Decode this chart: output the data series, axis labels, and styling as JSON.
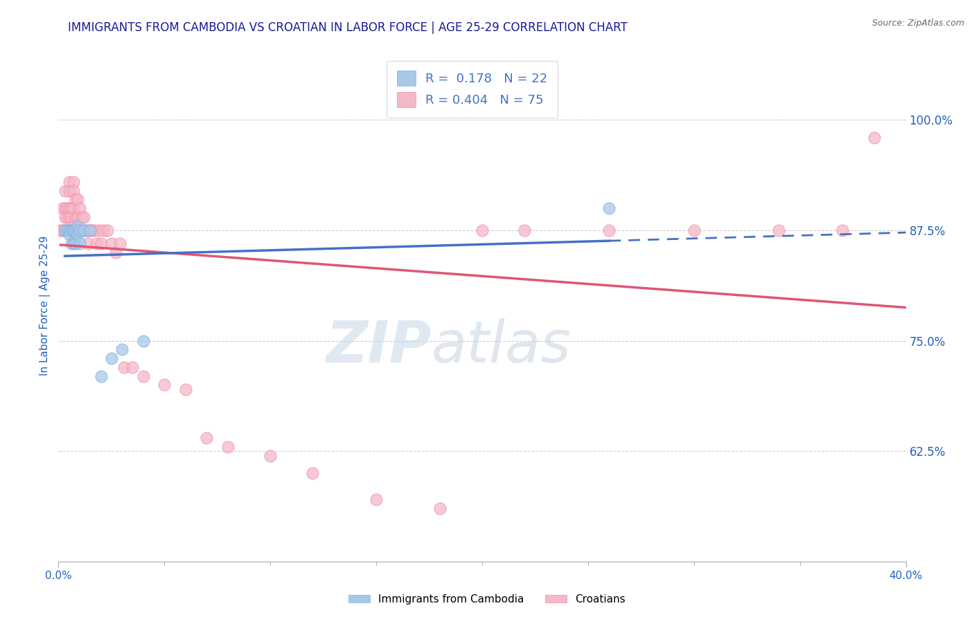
{
  "title": "IMMIGRANTS FROM CAMBODIA VS CROATIAN IN LABOR FORCE | AGE 25-29 CORRELATION CHART",
  "source": "Source: ZipAtlas.com",
  "ylabel": "In Labor Force | Age 25-29",
  "xlim": [
    0.0,
    0.4
  ],
  "ylim": [
    0.5,
    1.08
  ],
  "yticks": [
    0.625,
    0.75,
    0.875,
    1.0
  ],
  "ytick_labels": [
    "62.5%",
    "75.0%",
    "87.5%",
    "100.0%"
  ],
  "xtick_major": [
    0.0,
    0.4
  ],
  "xtick_major_labels": [
    "0.0%",
    "40.0%"
  ],
  "xtick_minor": [
    0.05,
    0.1,
    0.15,
    0.2,
    0.25,
    0.3,
    0.35
  ],
  "cambodia_R": 0.178,
  "cambodia_N": 22,
  "croatian_R": 0.404,
  "croatian_N": 75,
  "cambodia_color": "#a8c8e8",
  "cambodia_edge_color": "#7eb3e0",
  "croatian_color": "#f5b8c8",
  "croatian_edge_color": "#f090a8",
  "cambodia_line_color": "#4472c4",
  "croatian_line_color": "#e05575",
  "title_color": "#1a1a9a",
  "axis_label_color": "#2060c0",
  "tick_label_color": "#2060c0",
  "watermark_zip": "ZIP",
  "watermark_atlas": "atlas",
  "cambodia_x": [
    0.003,
    0.004,
    0.005,
    0.005,
    0.006,
    0.006,
    0.007,
    0.007,
    0.007,
    0.008,
    0.008,
    0.009,
    0.009,
    0.01,
    0.01,
    0.012,
    0.015,
    0.02,
    0.025,
    0.03,
    0.04,
    0.26
  ],
  "cambodia_y": [
    0.875,
    0.875,
    0.875,
    0.87,
    0.875,
    0.86,
    0.875,
    0.86,
    0.875,
    0.875,
    0.86,
    0.88,
    0.87,
    0.875,
    0.86,
    0.875,
    0.875,
    0.71,
    0.73,
    0.74,
    0.75,
    0.9
  ],
  "croatian_x": [
    0.001,
    0.002,
    0.002,
    0.002,
    0.003,
    0.003,
    0.003,
    0.003,
    0.003,
    0.004,
    0.004,
    0.004,
    0.004,
    0.004,
    0.005,
    0.005,
    0.005,
    0.005,
    0.005,
    0.005,
    0.006,
    0.006,
    0.006,
    0.006,
    0.007,
    0.007,
    0.007,
    0.007,
    0.007,
    0.008,
    0.008,
    0.008,
    0.008,
    0.009,
    0.009,
    0.009,
    0.01,
    0.01,
    0.01,
    0.011,
    0.011,
    0.012,
    0.012,
    0.013,
    0.014,
    0.014,
    0.015,
    0.016,
    0.017,
    0.018,
    0.019,
    0.02,
    0.021,
    0.023,
    0.025,
    0.027,
    0.029,
    0.031,
    0.035,
    0.04,
    0.05,
    0.06,
    0.07,
    0.08,
    0.1,
    0.12,
    0.15,
    0.18,
    0.2,
    0.22,
    0.26,
    0.3,
    0.34,
    0.37,
    0.385
  ],
  "croatian_y": [
    0.875,
    0.9,
    0.875,
    0.875,
    0.92,
    0.9,
    0.89,
    0.875,
    0.875,
    0.9,
    0.89,
    0.875,
    0.875,
    0.875,
    0.93,
    0.92,
    0.9,
    0.89,
    0.875,
    0.875,
    0.9,
    0.89,
    0.875,
    0.875,
    0.93,
    0.92,
    0.9,
    0.875,
    0.875,
    0.91,
    0.89,
    0.875,
    0.875,
    0.91,
    0.89,
    0.875,
    0.9,
    0.875,
    0.875,
    0.89,
    0.875,
    0.89,
    0.875,
    0.875,
    0.875,
    0.86,
    0.875,
    0.875,
    0.875,
    0.86,
    0.875,
    0.86,
    0.875,
    0.875,
    0.86,
    0.85,
    0.86,
    0.72,
    0.72,
    0.71,
    0.7,
    0.695,
    0.64,
    0.63,
    0.62,
    0.6,
    0.57,
    0.56,
    0.875,
    0.875,
    0.875,
    0.875,
    0.875,
    0.875,
    0.98
  ]
}
